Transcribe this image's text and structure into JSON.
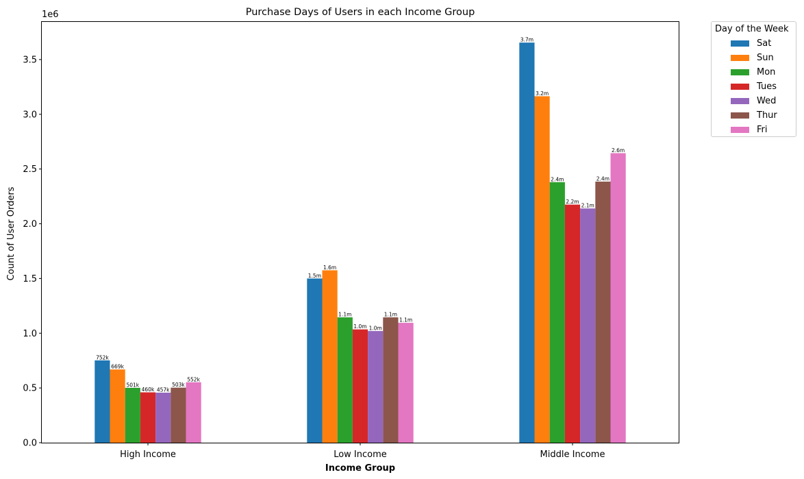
{
  "chart_data": {
    "type": "bar",
    "title": "Purchase Days of Users in each Income Group",
    "xlabel": "Income Group",
    "ylabel": "Count of User Orders",
    "y_offset_label": "1e6",
    "ylim": [
      0,
      3850000
    ],
    "yticks": [
      0,
      500000,
      1000000,
      1500000,
      2000000,
      2500000,
      3000000,
      3500000
    ],
    "ytick_labels": [
      "0.0",
      "0.5",
      "1.0",
      "1.5",
      "2.0",
      "2.5",
      "3.0",
      "3.5"
    ],
    "categories": [
      "High Income",
      "Low Income",
      "Middle Income"
    ],
    "legend_title": "Day of the Week",
    "legend_position": "outside-top-right",
    "grid": false,
    "series": [
      {
        "name": "Sat",
        "color": "#1f77b4",
        "values": [
          752000,
          1500000,
          3655000
        ],
        "labels": [
          "752k",
          "1.5m",
          "3.7m"
        ]
      },
      {
        "name": "Sun",
        "color": "#ff7f0e",
        "values": [
          669000,
          1575000,
          3165000
        ],
        "labels": [
          "669k",
          "1.6m",
          "3.2m"
        ]
      },
      {
        "name": "Mon",
        "color": "#2ca02c",
        "values": [
          501000,
          1145000,
          2380000
        ],
        "labels": [
          "501k",
          "1.1m",
          "2.4m"
        ]
      },
      {
        "name": "Tues",
        "color": "#d62728",
        "values": [
          460000,
          1035000,
          2175000
        ],
        "labels": [
          "460k",
          "1.0m",
          "2.2m"
        ]
      },
      {
        "name": "Wed",
        "color": "#9467bd",
        "values": [
          457000,
          1020000,
          2140000
        ],
        "labels": [
          "457k",
          "1.0m",
          "2.1m"
        ]
      },
      {
        "name": "Thur",
        "color": "#8c564b",
        "values": [
          503000,
          1145000,
          2385000
        ],
        "labels": [
          "503k",
          "1.1m",
          "2.4m"
        ]
      },
      {
        "name": "Fri",
        "color": "#e377c2",
        "values": [
          552000,
          1095000,
          2645000
        ],
        "labels": [
          "552k",
          "1.1m",
          "2.6m"
        ]
      }
    ]
  }
}
